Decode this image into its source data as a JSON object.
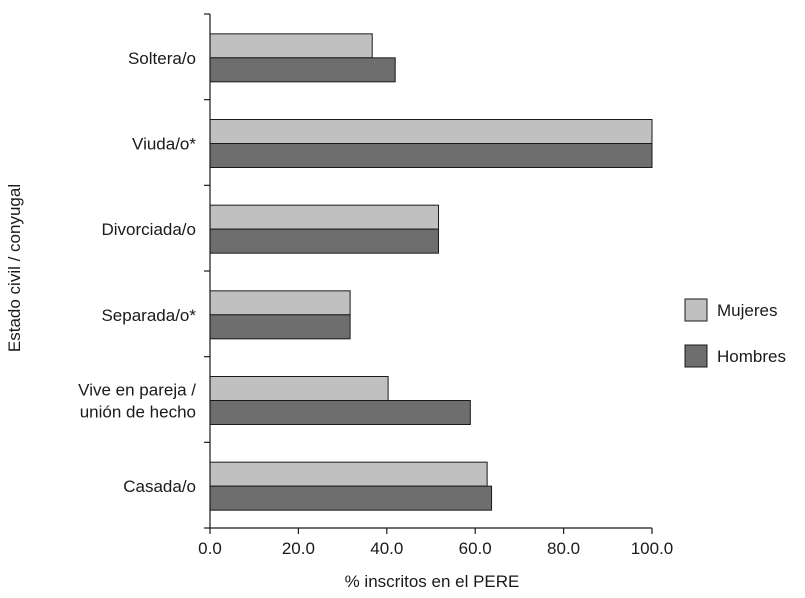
{
  "chart_data": {
    "type": "bar",
    "orientation": "horizontal",
    "title": "",
    "xlabel": "% inscritos en el PERE",
    "ylabel": "Estado civil / conyugal",
    "xlim": [
      0,
      100
    ],
    "xticks": [
      "0.0",
      "20.0",
      "40.0",
      "60.0",
      "80.0",
      "100.0"
    ],
    "grid": false,
    "legend_position": "right",
    "categories": [
      [
        "Soltera/o"
      ],
      [
        "Viuda/o*"
      ],
      [
        "Divorciada/o"
      ],
      [
        "Separada/o*"
      ],
      [
        "Vive en pareja /",
        "unión de hecho"
      ],
      [
        "Casada/o"
      ]
    ],
    "series": [
      {
        "name": "Mujeres",
        "color": "#c0c0c0",
        "values": [
          36.7,
          100.0,
          51.7,
          31.7,
          40.3,
          62.7
        ]
      },
      {
        "name": "Hombres",
        "color": "#6e6e6e",
        "values": [
          41.9,
          100.0,
          51.7,
          31.7,
          58.9,
          63.7
        ]
      }
    ]
  }
}
